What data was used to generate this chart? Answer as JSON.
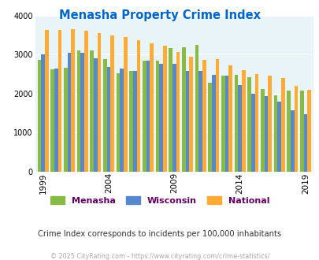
{
  "title": "Menasha Property Crime Index",
  "title_color": "#0066cc",
  "subtitle": "Crime Index corresponds to incidents per 100,000 inhabitants",
  "subtitle_color": "#333333",
  "footer": "© 2025 CityRating.com - https://www.cityrating.com/crime-statistics/",
  "footer_color": "#aaaaaa",
  "years": [
    1999,
    2000,
    2001,
    2002,
    2003,
    2004,
    2005,
    2006,
    2007,
    2008,
    2009,
    2010,
    2011,
    2012,
    2013,
    2014,
    2015,
    2016,
    2017,
    2018,
    2019
  ],
  "menasha": [
    2870,
    2630,
    2670,
    3100,
    3110,
    2890,
    2530,
    2590,
    2840,
    2840,
    3160,
    3180,
    3240,
    2280,
    2460,
    2480,
    2430,
    2110,
    1950,
    2080,
    2080
  ],
  "wisconsin": [
    3000,
    2650,
    3040,
    3040,
    2900,
    2680,
    2640,
    2580,
    2850,
    2760,
    2760,
    2580,
    2580,
    2490,
    2460,
    2210,
    2000,
    1940,
    1800,
    1570,
    1470
  ],
  "national": [
    3640,
    3640,
    3660,
    3610,
    3560,
    3500,
    3460,
    3370,
    3290,
    3230,
    3060,
    2950,
    2870,
    2880,
    2730,
    2610,
    2500,
    2470,
    2400,
    2200,
    2100
  ],
  "menasha_color": "#88bb44",
  "wisconsin_color": "#5588cc",
  "national_color": "#ffaa33",
  "plot_bg_color": "#e8f4f8",
  "ylim": [
    0,
    4000
  ],
  "yticks": [
    0,
    1000,
    2000,
    3000,
    4000
  ],
  "legend_labels": [
    "Menasha",
    "Wisconsin",
    "National"
  ],
  "bar_width": 0.28,
  "tick_years": [
    1999,
    2004,
    2009,
    2014,
    2019
  ]
}
